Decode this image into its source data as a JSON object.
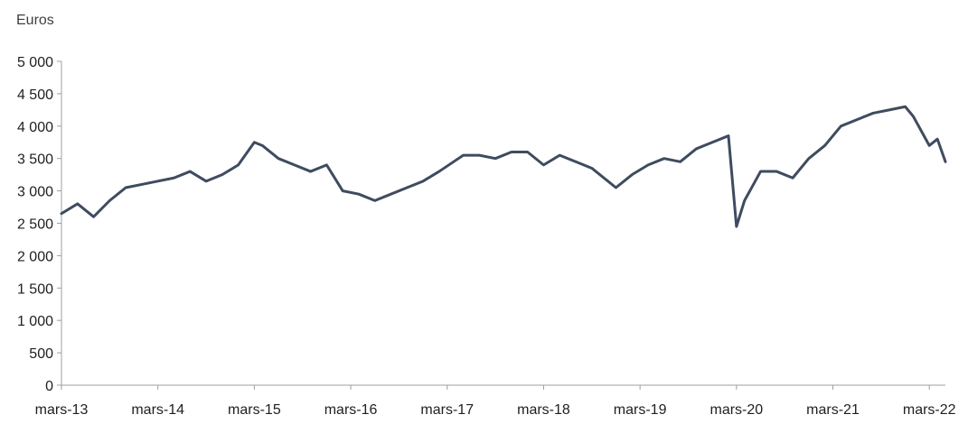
{
  "chart_data": {
    "type": "line",
    "ylabel": "Euros",
    "y_ticks": [
      "0",
      "500",
      "1 000",
      "1 500",
      "2 000",
      "2 500",
      "3 000",
      "3 500",
      "4 000",
      "4 500",
      "5 000"
    ],
    "y_tick_values": [
      0,
      500,
      1000,
      1500,
      2000,
      2500,
      3000,
      3500,
      4000,
      4500,
      5000
    ],
    "ylim": [
      0,
      5000
    ],
    "x_ticks": [
      "mars-13",
      "mars-14",
      "mars-15",
      "mars-16",
      "mars-17",
      "mars-18",
      "mars-19",
      "mars-20",
      "mars-21",
      "mars-22"
    ],
    "x_tick_dates": [
      "2013-03",
      "2014-03",
      "2015-03",
      "2016-03",
      "2017-03",
      "2018-03",
      "2019-03",
      "2020-03",
      "2021-03",
      "2022-03"
    ],
    "xlim": [
      "2013-03",
      "2022-05"
    ],
    "grid": false,
    "legend": "none",
    "colors": {
      "line": "#3f4b5f",
      "axis": "#9aa0a6"
    },
    "series": [
      {
        "x": [
          "2013-03",
          "2013-05",
          "2013-07",
          "2013-09",
          "2013-11",
          "2014-01",
          "2014-03",
          "2014-05",
          "2014-07",
          "2014-09",
          "2014-11",
          "2015-01",
          "2015-03",
          "2015-04",
          "2015-06",
          "2015-08",
          "2015-10",
          "2015-12",
          "2016-02",
          "2016-04",
          "2016-06",
          "2016-08",
          "2016-10",
          "2016-12",
          "2017-02",
          "2017-05",
          "2017-07",
          "2017-09",
          "2017-11",
          "2018-01",
          "2018-03",
          "2018-05",
          "2018-07",
          "2018-09",
          "2018-12",
          "2019-02",
          "2019-04",
          "2019-06",
          "2019-08",
          "2019-10",
          "2019-12",
          "2020-02",
          "2020-03",
          "2020-04",
          "2020-06",
          "2020-08",
          "2020-10",
          "2020-12",
          "2021-02",
          "2021-04",
          "2021-06",
          "2021-08",
          "2021-10",
          "2021-12",
          "2022-01",
          "2022-03",
          "2022-04",
          "2022-05"
        ],
        "values": [
          2650,
          2800,
          2600,
          2850,
          3050,
          3100,
          3150,
          3200,
          3300,
          3150,
          3250,
          3400,
          3750,
          3700,
          3500,
          3400,
          3300,
          3400,
          3000,
          2950,
          2850,
          2950,
          3050,
          3150,
          3300,
          3550,
          3550,
          3500,
          3600,
          3600,
          3400,
          3550,
          3450,
          3350,
          3050,
          3250,
          3400,
          3500,
          3450,
          3650,
          3750,
          3850,
          2450,
          2850,
          3300,
          3300,
          3200,
          3500,
          3700,
          4000,
          4100,
          4200,
          4250,
          4300,
          4150,
          3700,
          3800,
          3450
        ]
      }
    ]
  }
}
